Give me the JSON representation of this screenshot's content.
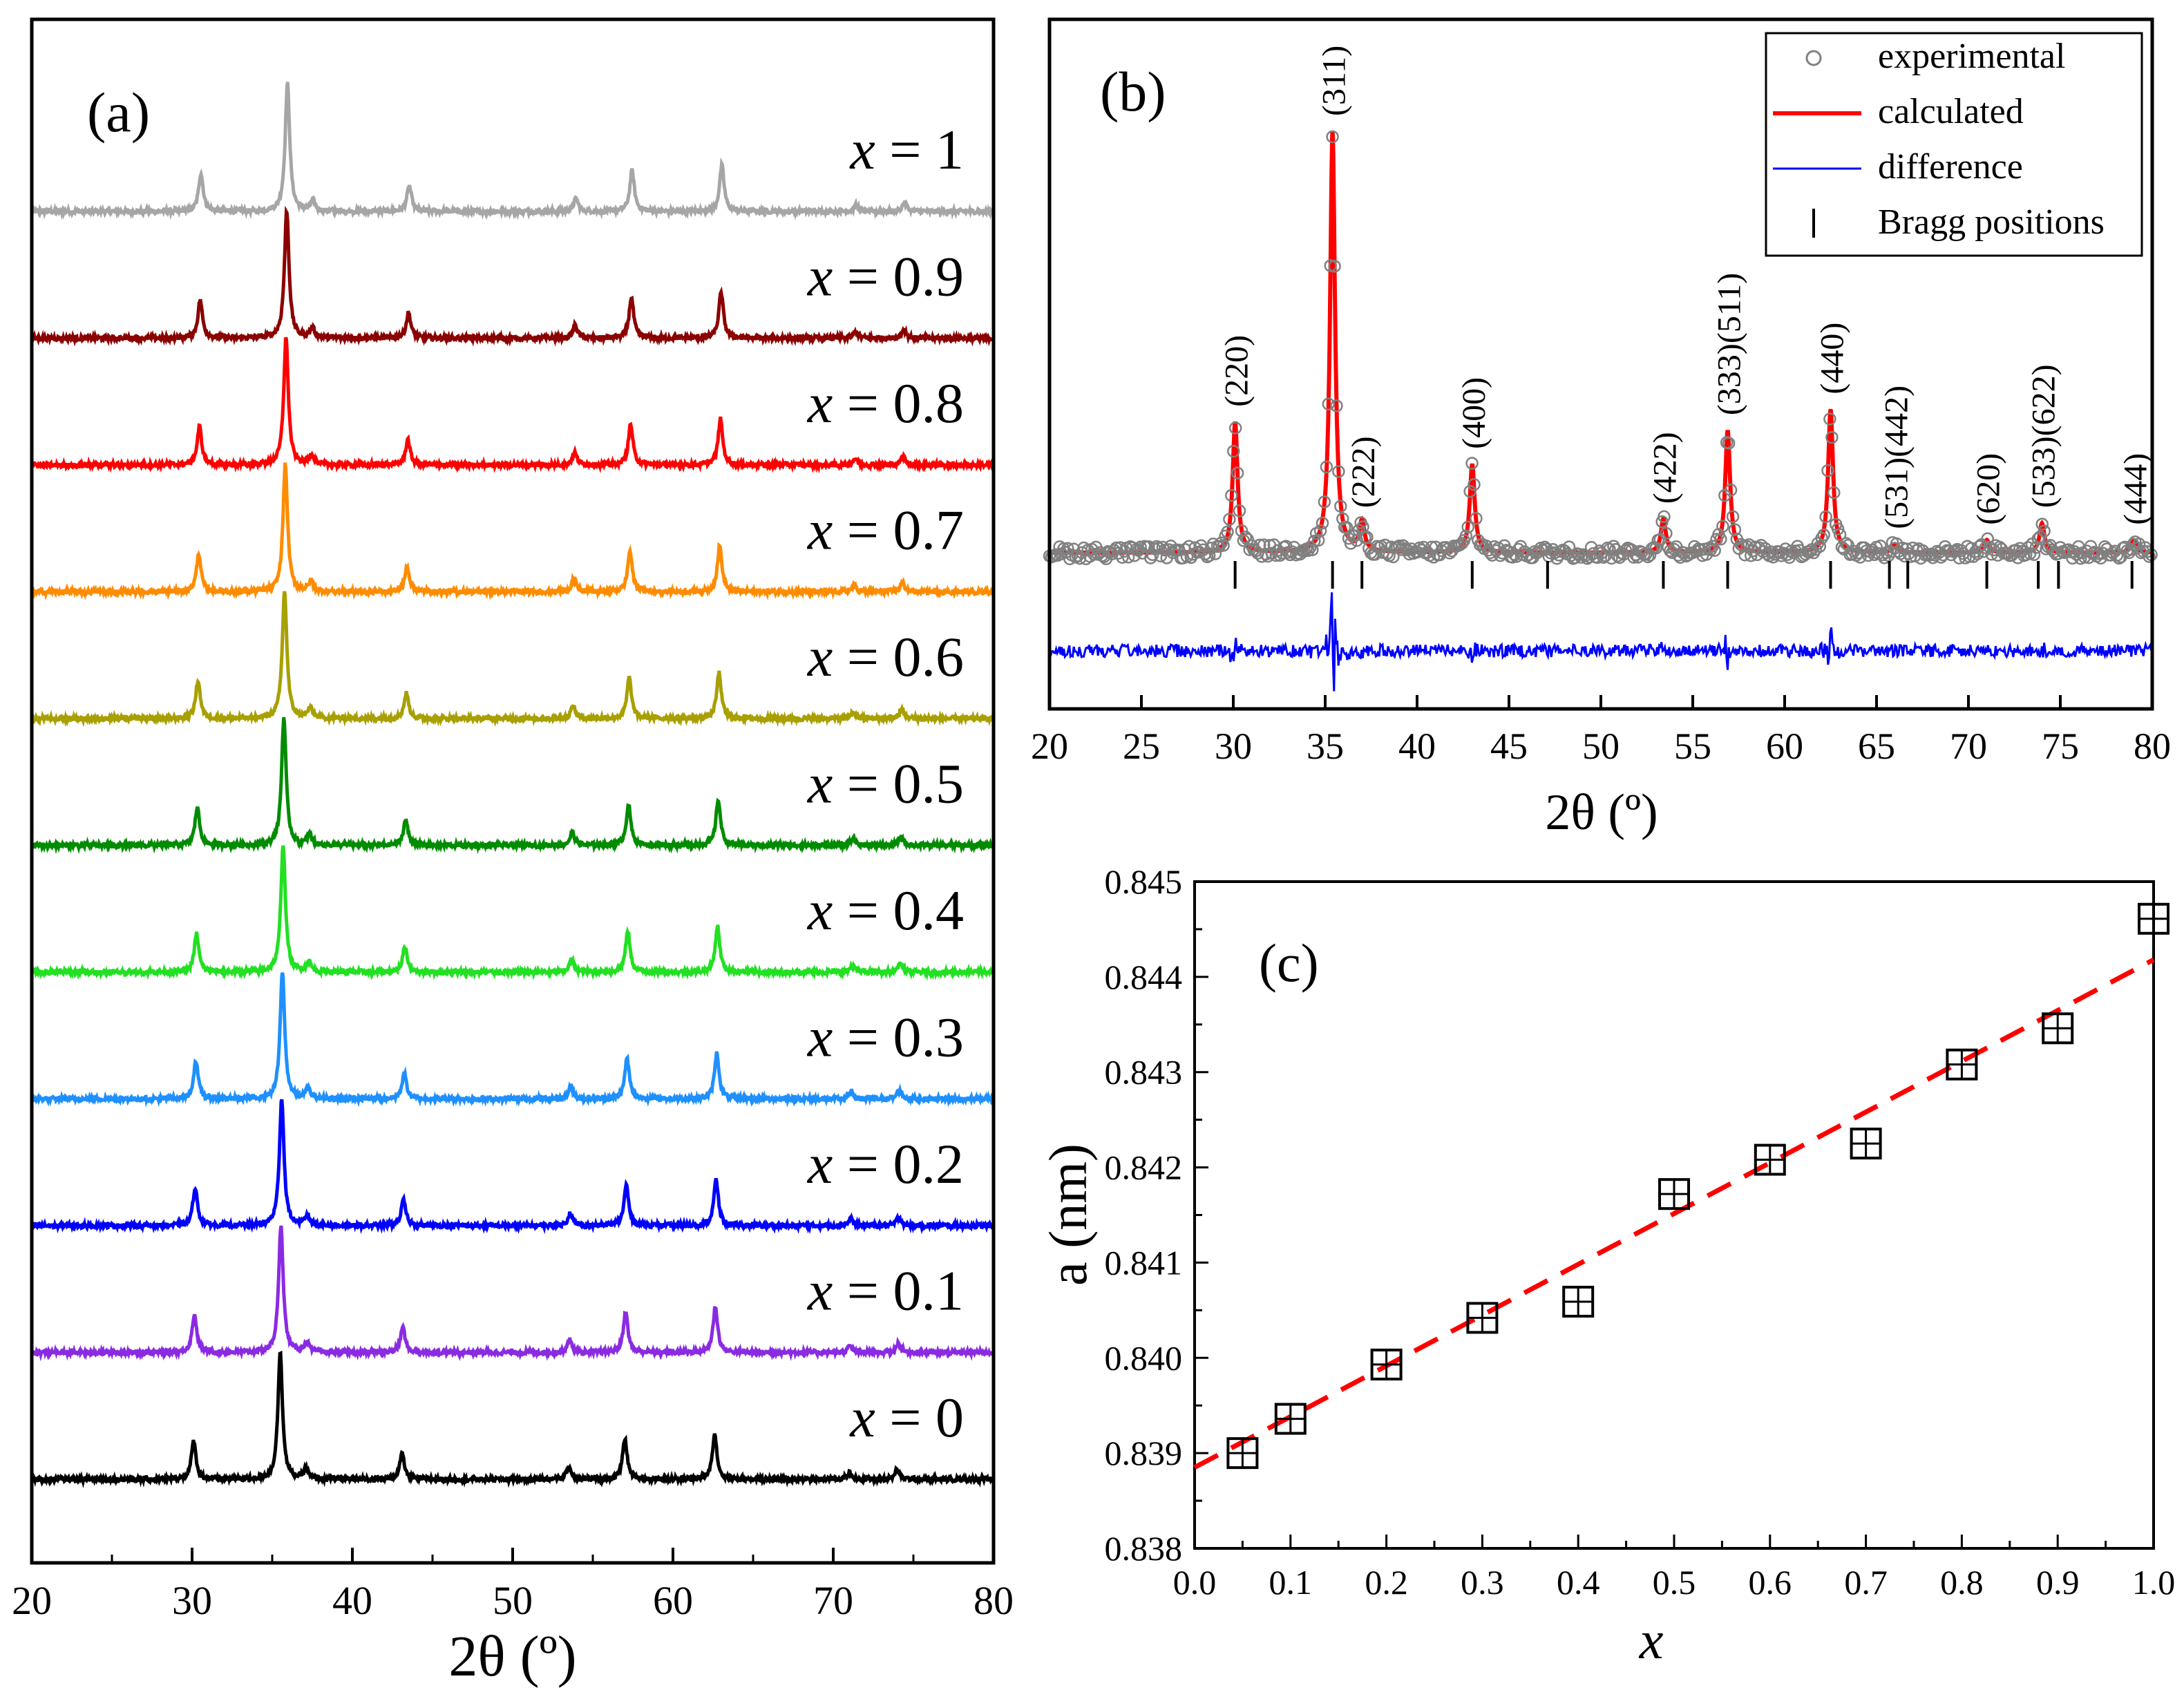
{
  "chart_data": [
    {
      "panel": "(a)",
      "type": "line",
      "title": "",
      "xlabel": "2θ (º)",
      "ylabel": "",
      "xlim": [
        20,
        80
      ],
      "xticks": [
        "20",
        "30",
        "40",
        "50",
        "60",
        "70",
        "80"
      ],
      "peaks_2theta": [
        30.1,
        35.5,
        37.1,
        43.1,
        53.5,
        57.0,
        62.6,
        71.0,
        74.0
      ],
      "peak_rel_intensity": [
        0.3,
        1.0,
        0.08,
        0.2,
        0.1,
        0.32,
        0.36,
        0.05,
        0.07
      ],
      "series": [
        {
          "name": "x = 1",
          "x_label": "x",
          "value_label": "= 1",
          "color": "#a6a6a6"
        },
        {
          "name": "x = 0.9",
          "x_label": "x",
          "value_label": "= 0.9",
          "color": "#8b0000"
        },
        {
          "name": "x = 0.8",
          "x_label": "x",
          "value_label": "= 0.8",
          "color": "#ff0000"
        },
        {
          "name": "x = 0.7",
          "x_label": "x",
          "value_label": "= 0.7",
          "color": "#ff8c00"
        },
        {
          "name": "x = 0.6",
          "x_label": "x",
          "value_label": "= 0.6",
          "color": "#a8a000"
        },
        {
          "name": "x = 0.5",
          "x_label": "x",
          "value_label": "= 0.5",
          "color": "#008c00"
        },
        {
          "name": "x = 0.4",
          "x_label": "x",
          "value_label": "= 0.4",
          "color": "#22e022"
        },
        {
          "name": "x = 0.3",
          "x_label": "x",
          "value_label": "= 0.3",
          "color": "#1e90ff"
        },
        {
          "name": "x = 0.2",
          "x_label": "x",
          "value_label": "= 0.2",
          "color": "#0000ff"
        },
        {
          "name": "x = 0.1",
          "x_label": "x",
          "value_label": "= 0.1",
          "color": "#8a2be2"
        },
        {
          "name": "x = 0",
          "x_label": "x",
          "value_label": "= 0",
          "color": "#000000"
        }
      ]
    },
    {
      "panel": "(b)",
      "type": "line",
      "title": "",
      "xlabel": "2θ (º)",
      "ylabel": "",
      "xlim": [
        20,
        80
      ],
      "xticks": [
        "20",
        "25",
        "30",
        "35",
        "40",
        "45",
        "50",
        "55",
        "60",
        "65",
        "70",
        "75",
        "80"
      ],
      "legend_position": "top-right",
      "legend": [
        {
          "label": "experimental",
          "style": "circle",
          "color": "#808080"
        },
        {
          "label": "calculated",
          "style": "line",
          "color": "#ff0000"
        },
        {
          "label": "difference",
          "style": "line",
          "color": "#0000ff"
        },
        {
          "label": "Bragg positions",
          "style": "tick",
          "color": "#000000"
        }
      ],
      "peaks": [
        {
          "hkl": "(220)",
          "two_theta": 30.1,
          "rel_intensity": 0.31
        },
        {
          "hkl": "(311)",
          "two_theta": 35.4,
          "rel_intensity": 1.0
        },
        {
          "hkl": "(222)",
          "two_theta": 37.0,
          "rel_intensity": 0.07
        },
        {
          "hkl": "(400)",
          "two_theta": 43.0,
          "rel_intensity": 0.21
        },
        {
          "hkl": "(422)",
          "two_theta": 53.4,
          "rel_intensity": 0.08
        },
        {
          "hkl": "(333)(511)",
          "two_theta": 56.9,
          "rel_intensity": 0.29
        },
        {
          "hkl": "(440)",
          "two_theta": 62.5,
          "rel_intensity": 0.34
        },
        {
          "hkl": "(531)(442)",
          "two_theta": 66.0,
          "rel_intensity": 0.02
        },
        {
          "hkl": "(620)",
          "two_theta": 71.0,
          "rel_intensity": 0.03
        },
        {
          "hkl": "(533)(622)",
          "two_theta": 74.0,
          "rel_intensity": 0.07
        },
        {
          "hkl": "(444)",
          "two_theta": 79.0,
          "rel_intensity": 0.03
        }
      ],
      "bragg_positions": [
        30.1,
        35.4,
        37.0,
        43.0,
        47.1,
        53.4,
        56.9,
        62.5,
        65.7,
        66.7,
        71.0,
        73.8,
        74.9,
        78.9
      ]
    },
    {
      "panel": "(c)",
      "type": "scatter",
      "title": "",
      "xlabel": "x",
      "ylabel": "a (nm)",
      "xlim": [
        0.0,
        1.0
      ],
      "ylim": [
        0.838,
        0.845
      ],
      "xticks": [
        "0.0",
        "0.1",
        "0.2",
        "0.3",
        "0.4",
        "0.5",
        "0.6",
        "0.7",
        "0.8",
        "0.9",
        "1.0"
      ],
      "yticks": [
        "0.838",
        "0.839",
        "0.840",
        "0.841",
        "0.842",
        "0.843",
        "0.844",
        "0.845"
      ],
      "x": [
        0.05,
        0.1,
        0.2,
        0.3,
        0.4,
        0.5,
        0.6,
        0.7,
        0.8,
        0.9,
        1.0
      ],
      "y": [
        0.839,
        0.83936,
        0.83993,
        0.84042,
        0.84059,
        0.84172,
        0.84208,
        0.84225,
        0.84308,
        0.84346,
        0.84461
      ],
      "fit_line": {
        "style": "dashed",
        "color": "#ff0000",
        "x": [
          0.0,
          1.0
        ],
        "y": [
          0.83885,
          0.84418
        ]
      }
    }
  ]
}
